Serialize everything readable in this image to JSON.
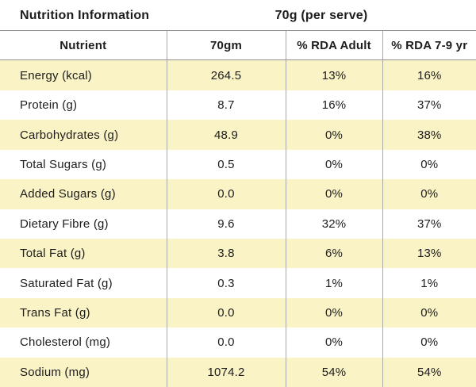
{
  "header": {
    "title": "Nutrition Information",
    "serving": "70g (per serve)"
  },
  "table": {
    "columns": [
      "Nutrient",
      "70gm",
      "% RDA Adult",
      "% RDA 7-9 yr"
    ],
    "rows": [
      {
        "nutrient": "Energy (kcal)",
        "amount": "264.5",
        "rda_adult": "13%",
        "rda_7_9yr": "16%"
      },
      {
        "nutrient": "Protein (g)",
        "amount": "8.7",
        "rda_adult": "16%",
        "rda_7_9yr": "37%"
      },
      {
        "nutrient": "Carbohydrates (g)",
        "amount": "48.9",
        "rda_adult": "0%",
        "rda_7_9yr": "38%"
      },
      {
        "nutrient": "Total Sugars (g)",
        "amount": "0.5",
        "rda_adult": "0%",
        "rda_7_9yr": "0%"
      },
      {
        "nutrient": "Added Sugars (g)",
        "amount": "0.0",
        "rda_adult": "0%",
        "rda_7_9yr": "0%"
      },
      {
        "nutrient": "Dietary Fibre (g)",
        "amount": "9.6",
        "rda_adult": "32%",
        "rda_7_9yr": "37%"
      },
      {
        "nutrient": "Total Fat (g)",
        "amount": "3.8",
        "rda_adult": "6%",
        "rda_7_9yr": "13%"
      },
      {
        "nutrient": "Saturated Fat (g)",
        "amount": "0.3",
        "rda_adult": "1%",
        "rda_7_9yr": "1%"
      },
      {
        "nutrient": "Trans Fat (g)",
        "amount": "0.0",
        "rda_adult": "0%",
        "rda_7_9yr": "0%"
      },
      {
        "nutrient": "Cholesterol (mg)",
        "amount": "0.0",
        "rda_adult": "0%",
        "rda_7_9yr": "0%"
      },
      {
        "nutrient": "Sodium (mg)",
        "amount": "1074.2",
        "rda_adult": "54%",
        "rda_7_9yr": "54%"
      }
    ]
  },
  "colors": {
    "row_highlight": "#FAF3C6",
    "row_alt": "#FFFFFF",
    "border": "#A8A8A8",
    "header_border": "#8F8F8F",
    "text": "#1D1D1D"
  },
  "chart_data": {
    "type": "table",
    "title": "Nutrition Information",
    "subtitle": "70g (per serve)",
    "columns": [
      "Nutrient",
      "70gm",
      "% RDA Adult",
      "% RDA 7-9 yr"
    ],
    "categories": [
      "Energy (kcal)",
      "Protein (g)",
      "Carbohydrates (g)",
      "Total Sugars (g)",
      "Added Sugars (g)",
      "Dietary Fibre (g)",
      "Total Fat (g)",
      "Saturated Fat (g)",
      "Trans Fat (g)",
      "Cholesterol (mg)",
      "Sodium (mg)"
    ],
    "series": [
      {
        "name": "70gm",
        "values": [
          264.5,
          8.7,
          48.9,
          0.5,
          0.0,
          9.6,
          3.8,
          0.3,
          0.0,
          0.0,
          1074.2
        ]
      },
      {
        "name": "% RDA Adult",
        "values": [
          13,
          16,
          0,
          0,
          0,
          32,
          6,
          1,
          0,
          0,
          54
        ]
      },
      {
        "name": "% RDA 7-9 yr",
        "values": [
          16,
          37,
          38,
          0,
          0,
          37,
          13,
          1,
          0,
          0,
          54
        ]
      }
    ],
    "layout": {
      "highlight_rows": "odd rows pale yellow",
      "grid": "vertical column dividers + header rules"
    }
  }
}
